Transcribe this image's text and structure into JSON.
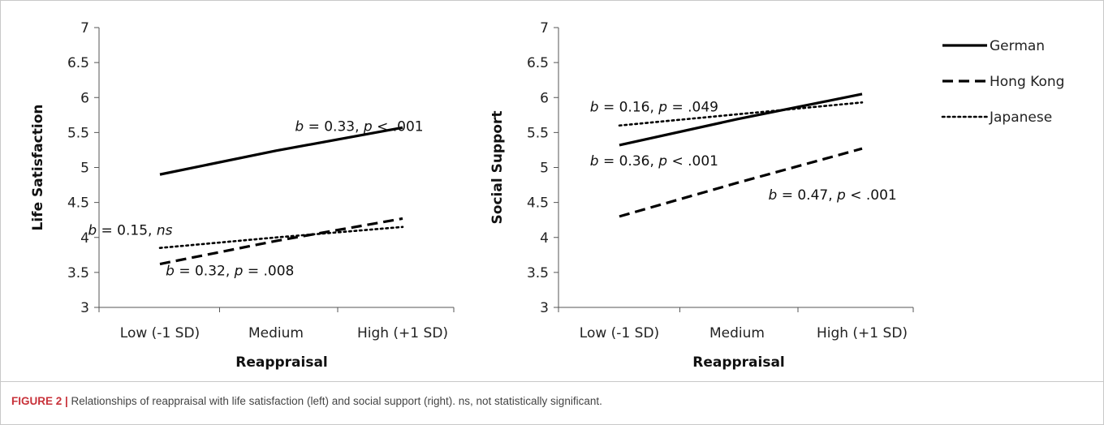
{
  "figure": {
    "caption_label": "FIGURE 2 |",
    "caption_text": " Relationships of reappraisal with life satisfaction (left) and social support (right). ns, not statistically significant."
  },
  "legend": {
    "position": "right",
    "entries": [
      {
        "name": "German",
        "style": "solid"
      },
      {
        "name": "Hong Kong",
        "style": "dashed"
      },
      {
        "name": "Japanese",
        "style": "dotted"
      }
    ]
  },
  "chart_data": [
    {
      "type": "line",
      "panel": "left",
      "categories": [
        "Low (-1 SD)",
        "Medium",
        "High (+1 SD)"
      ],
      "xlabel": "Reappraisal",
      "ylabel": "Life Satisfaction",
      "ylim": [
        3,
        7
      ],
      "yticks": [
        "3",
        "3.5",
        "4",
        "4.5",
        "5",
        "5.5",
        "6",
        "6.5",
        "7"
      ],
      "grid": false,
      "series": [
        {
          "name": "German",
          "style": "solid",
          "values": [
            4.9,
            5.24,
            5.57
          ]
        },
        {
          "name": "Hong Kong",
          "style": "dashed",
          "values": [
            3.62,
            3.95,
            4.27
          ]
        },
        {
          "name": "Japanese",
          "style": "dotted",
          "values": [
            3.85,
            4.0,
            4.15
          ]
        }
      ],
      "annotations": [
        {
          "b": "b",
          "b_text": " = 0.33, ",
          "p": "p",
          "p_text": " < .001",
          "x_cat": 1.15,
          "y": 5.52
        },
        {
          "b": "b",
          "b_text": " = 0.15, ",
          "p": "",
          "p_text": "ns",
          "p_italic": true,
          "x_cat": -0.62,
          "y": 4.04
        },
        {
          "b": "b",
          "b_text": " = 0.32, ",
          "p": "p",
          "p_text": " = .008",
          "x_cat": 0.05,
          "y": 3.46
        }
      ]
    },
    {
      "type": "line",
      "panel": "right",
      "categories": [
        "Low (-1 SD)",
        "Medium",
        "High (+1 SD)"
      ],
      "xlabel": "Reappraisal",
      "ylabel": "Social Support",
      "ylim": [
        3,
        7
      ],
      "yticks": [
        "3",
        "3.5",
        "4",
        "4.5",
        "5",
        "5.5",
        "6",
        "6.5",
        "7"
      ],
      "grid": false,
      "series": [
        {
          "name": "German",
          "style": "solid",
          "values": [
            5.32,
            5.69,
            6.05
          ]
        },
        {
          "name": "Hong Kong",
          "style": "dashed",
          "values": [
            4.3,
            4.78,
            5.27
          ]
        },
        {
          "name": "Japanese",
          "style": "dotted",
          "values": [
            5.6,
            5.76,
            5.93
          ]
        }
      ],
      "annotations": [
        {
          "b": "b",
          "b_text": " = 0.16, ",
          "p": "p",
          "p_text": " = .049",
          "x_cat": -0.25,
          "y": 5.8
        },
        {
          "b": "b",
          "b_text": " = 0.36, ",
          "p": "p",
          "p_text": " < .001",
          "x_cat": -0.25,
          "y": 5.03
        },
        {
          "b": "b",
          "b_text": " = 0.47, ",
          "p": "p",
          "p_text": " < .001",
          "x_cat": 1.25,
          "y": 4.54
        }
      ]
    }
  ]
}
